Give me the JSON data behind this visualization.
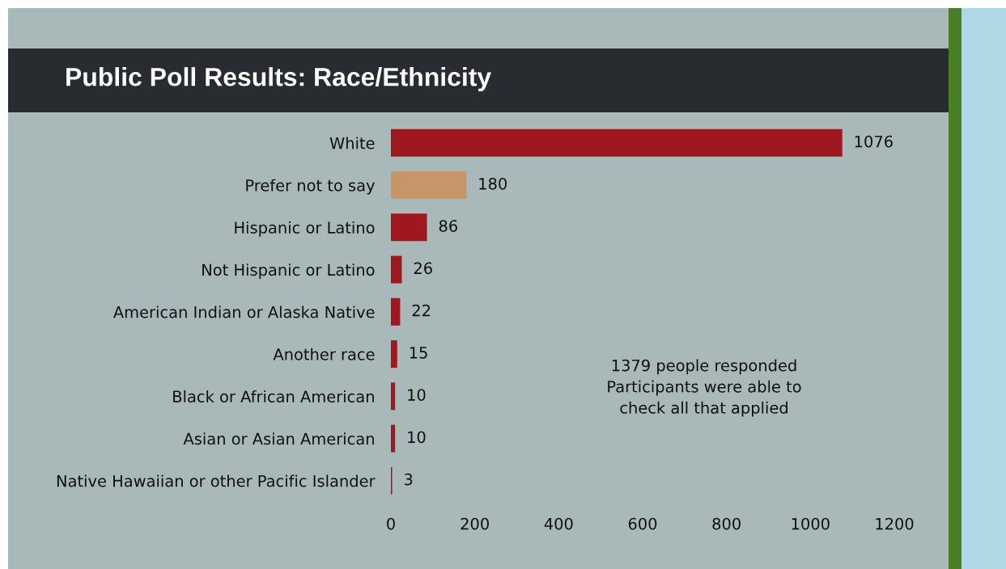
{
  "chart_data": {
    "type": "bar",
    "orientation": "horizontal",
    "title": "Public Poll Results: Race/Ethnicity",
    "categories": [
      "White",
      "Prefer not to say",
      "Hispanic or Latino",
      "Not Hispanic or Latino",
      "American Indian or Alaska Native",
      "Another race",
      "Black or African American",
      "Asian or Asian American",
      "Native Hawaiian or other Pacific Islander"
    ],
    "values": [
      1076,
      180,
      86,
      26,
      22,
      15,
      10,
      10,
      3
    ],
    "colors": [
      "#a0181f",
      "#c4966a",
      "#a0181f",
      "#a0181f",
      "#a0181f",
      "#a0181f",
      "#a0181f",
      "#a0181f",
      "#a0181f"
    ],
    "xlim": [
      0,
      1200
    ],
    "xticks": [
      0,
      200,
      400,
      600,
      800,
      1000,
      1200
    ],
    "data_labels": true,
    "grid": false,
    "legend": false,
    "annotations": [
      "1379 people responded\nParticipants were able to\ncheck all that applied"
    ]
  }
}
